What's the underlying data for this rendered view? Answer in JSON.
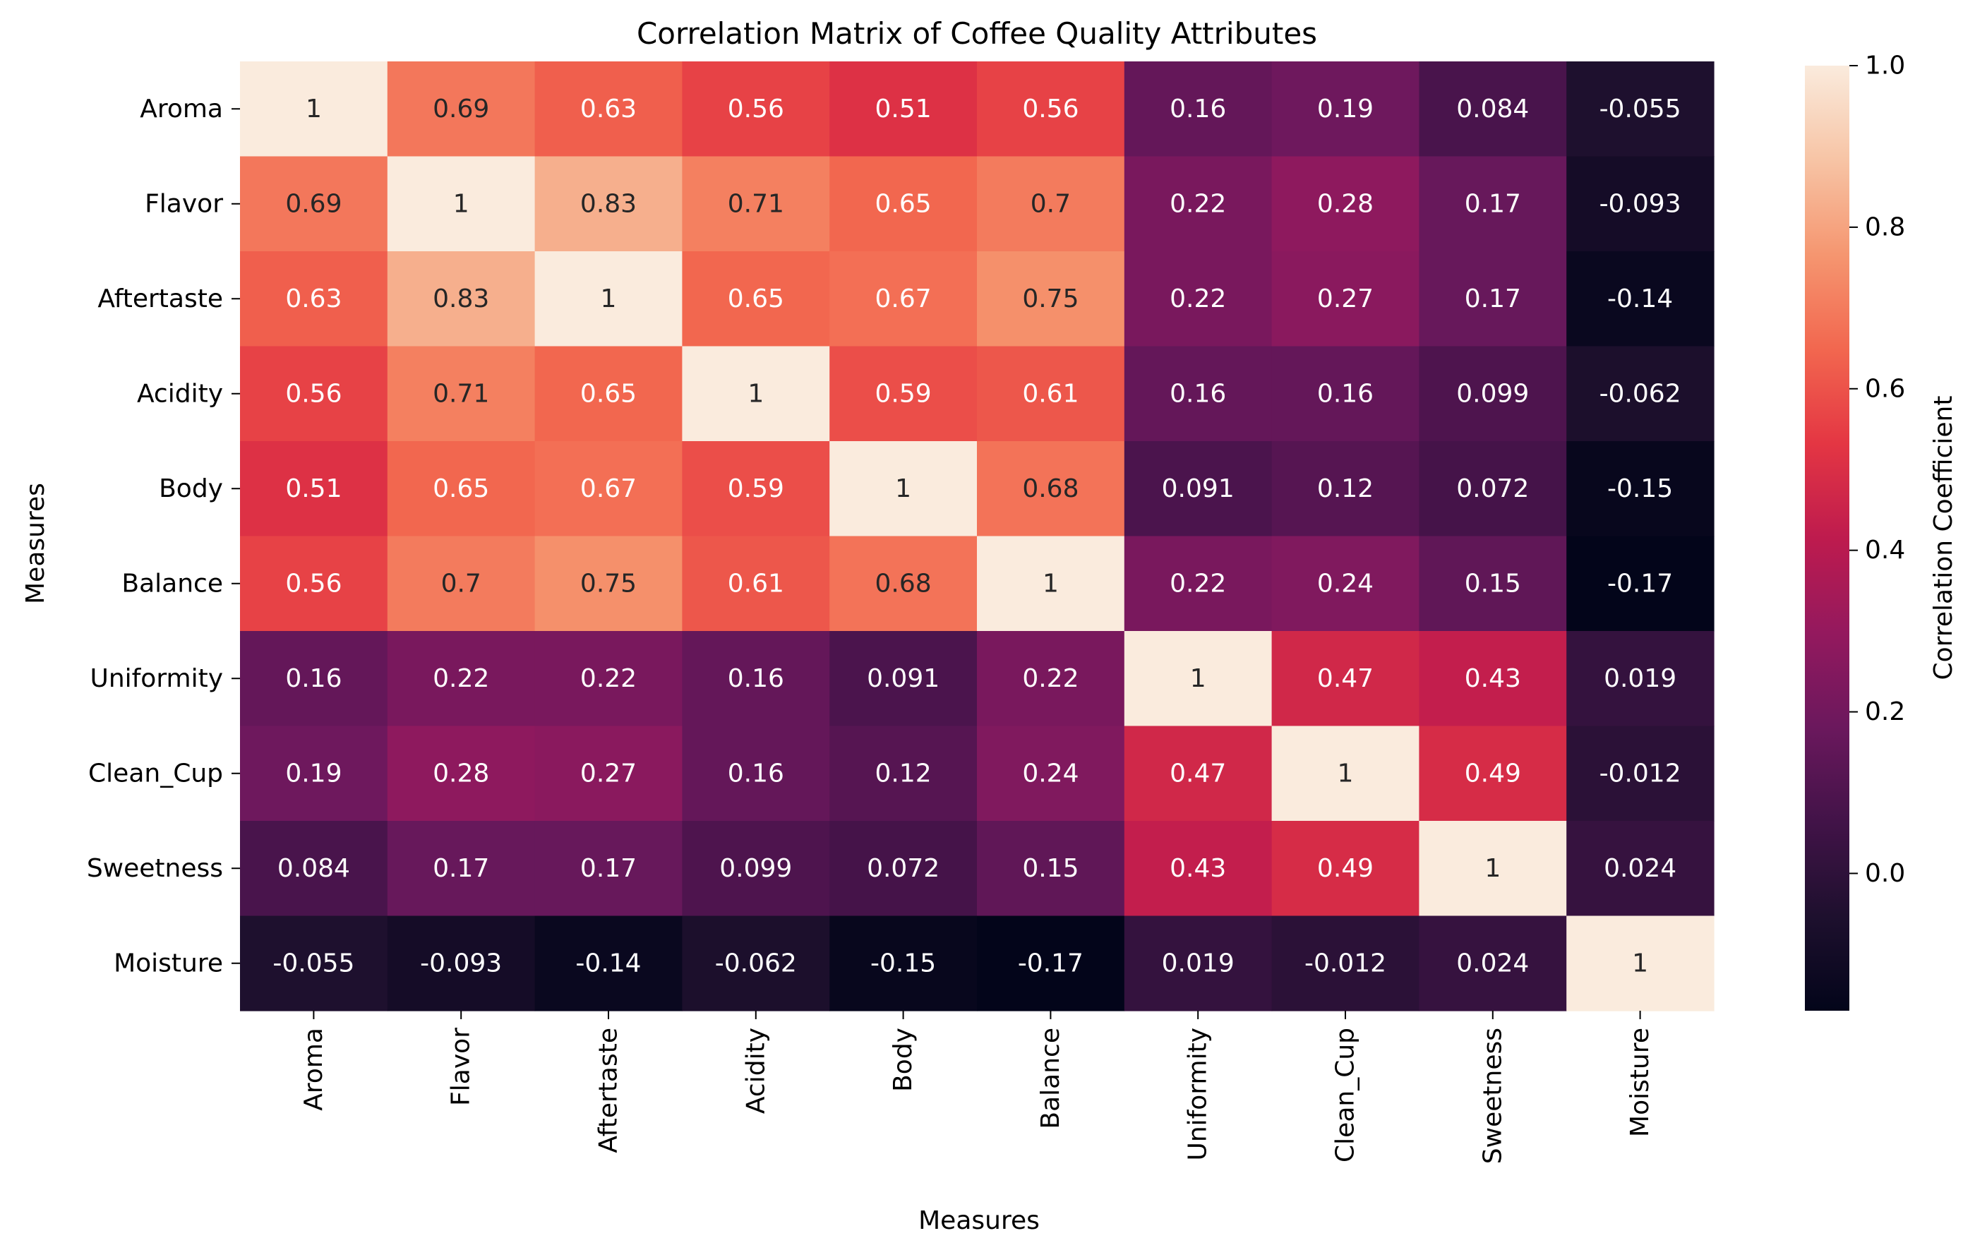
{
  "chart_data": {
    "type": "heatmap",
    "title": "Correlation Matrix of Coffee Quality Attributes",
    "xlabel": "Measures",
    "ylabel": "Measures",
    "colorbar_label": "Correlation Coefficient",
    "rows": [
      "Aroma",
      "Flavor",
      "Aftertaste",
      "Acidity",
      "Body",
      "Balance",
      "Uniformity",
      "Clean_Cup",
      "Sweetness",
      "Moisture"
    ],
    "columns": [
      "Aroma",
      "Flavor",
      "Aftertaste",
      "Acidity",
      "Body",
      "Balance",
      "Uniformity",
      "Clean_Cup",
      "Sweetness",
      "Moisture"
    ],
    "values": [
      [
        1,
        0.69,
        0.63,
        0.56,
        0.51,
        0.56,
        0.16,
        0.19,
        0.084,
        -0.055
      ],
      [
        0.69,
        1,
        0.83,
        0.71,
        0.65,
        0.7,
        0.22,
        0.28,
        0.17,
        -0.093
      ],
      [
        0.63,
        0.83,
        1,
        0.65,
        0.67,
        0.75,
        0.22,
        0.27,
        0.17,
        -0.14
      ],
      [
        0.56,
        0.71,
        0.65,
        1,
        0.59,
        0.61,
        0.16,
        0.16,
        0.099,
        -0.062
      ],
      [
        0.51,
        0.65,
        0.67,
        0.59,
        1,
        0.68,
        0.091,
        0.12,
        0.072,
        -0.15
      ],
      [
        0.56,
        0.7,
        0.75,
        0.61,
        0.68,
        1,
        0.22,
        0.24,
        0.15,
        -0.17
      ],
      [
        0.16,
        0.22,
        0.22,
        0.16,
        0.091,
        0.22,
        1,
        0.47,
        0.43,
        0.019
      ],
      [
        0.19,
        0.28,
        0.27,
        0.16,
        0.12,
        0.24,
        0.47,
        1,
        0.49,
        -0.012
      ],
      [
        0.084,
        0.17,
        0.17,
        0.099,
        0.072,
        0.15,
        0.43,
        0.49,
        1,
        0.024
      ],
      [
        -0.055,
        -0.093,
        -0.14,
        -0.062,
        -0.15,
        -0.17,
        0.019,
        -0.012,
        0.024,
        1
      ]
    ],
    "value_labels": [
      [
        "1",
        "0.69",
        "0.63",
        "0.56",
        "0.51",
        "0.56",
        "0.16",
        "0.19",
        "0.084",
        "-0.055"
      ],
      [
        "0.69",
        "1",
        "0.83",
        "0.71",
        "0.65",
        "0.7",
        "0.22",
        "0.28",
        "0.17",
        "-0.093"
      ],
      [
        "0.63",
        "0.83",
        "1",
        "0.65",
        "0.67",
        "0.75",
        "0.22",
        "0.27",
        "0.17",
        "-0.14"
      ],
      [
        "0.56",
        "0.71",
        "0.65",
        "1",
        "0.59",
        "0.61",
        "0.16",
        "0.16",
        "0.099",
        "-0.062"
      ],
      [
        "0.51",
        "0.65",
        "0.67",
        "0.59",
        "1",
        "0.68",
        "0.091",
        "0.12",
        "0.072",
        "-0.15"
      ],
      [
        "0.56",
        "0.7",
        "0.75",
        "0.61",
        "0.68",
        "1",
        "0.22",
        "0.24",
        "0.15",
        "-0.17"
      ],
      [
        "0.16",
        "0.22",
        "0.22",
        "0.16",
        "0.091",
        "0.22",
        "1",
        "0.47",
        "0.43",
        "0.019"
      ],
      [
        "0.19",
        "0.28",
        "0.27",
        "0.16",
        "0.12",
        "0.24",
        "0.47",
        "1",
        "0.49",
        "-0.012"
      ],
      [
        "0.084",
        "0.17",
        "0.17",
        "0.099",
        "0.072",
        "0.15",
        "0.43",
        "0.49",
        "1",
        "0.024"
      ],
      [
        "-0.055",
        "-0.093",
        "-0.14",
        "-0.062",
        "-0.15",
        "-0.17",
        "0.019",
        "-0.012",
        "0.024",
        "1"
      ]
    ],
    "colormap": "rocket",
    "color_range": [
      -0.17,
      1
    ],
    "colorbar_ticks": [
      {
        "value": 1.0,
        "label": "1.0"
      },
      {
        "value": 0.8,
        "label": "0.8"
      },
      {
        "value": 0.6,
        "label": "0.6"
      },
      {
        "value": 0.4,
        "label": "0.4"
      },
      {
        "value": 0.2,
        "label": "0.2"
      },
      {
        "value": 0.0,
        "label": "0.0"
      }
    ],
    "grid": false,
    "legend": "colorbar-right"
  }
}
